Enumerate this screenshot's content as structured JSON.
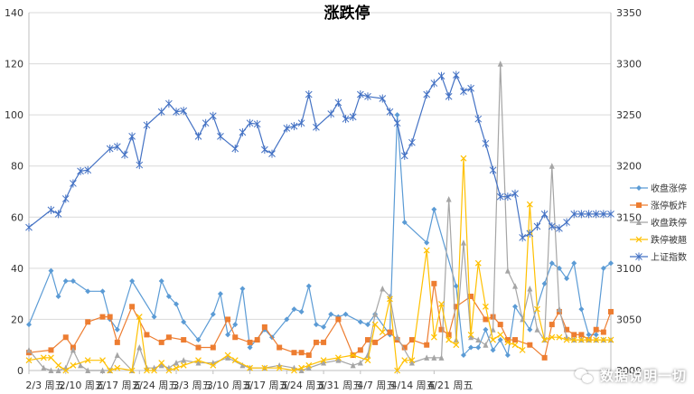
{
  "chart_data": {
    "type": "line",
    "title": "涨跌停",
    "x_tick_labels": [
      "2/3 周五",
      "2/10 周五",
      "2/17 周五",
      "2/24 周五",
      "3/3 周五",
      "3/10 周五",
      "3/17 周五",
      "3/24 周五",
      "3/31 周五",
      "4/7 周五",
      "4/14 周五",
      "4/21 周五"
    ],
    "left_axis": {
      "min": 0,
      "max": 140,
      "ticks": [
        0,
        20,
        40,
        60,
        80,
        100,
        120,
        140
      ]
    },
    "right_axis": {
      "min": 3000,
      "max": 3350,
      "ticks": [
        3000,
        3050,
        3100,
        3150,
        3200,
        3250,
        3300,
        3350
      ]
    },
    "grid": true,
    "legend_position": "right",
    "series": [
      {
        "name": "收盘涨停",
        "color": "#5b9bd5",
        "marker": "diamond",
        "axis": "left",
        "x": [
          0,
          3,
          4,
          5,
          6,
          8,
          10,
          11,
          12,
          14,
          17,
          18,
          19,
          20,
          21,
          23,
          25,
          26,
          27,
          28,
          29,
          30,
          32,
          33,
          35,
          36,
          37,
          38,
          39,
          40,
          41,
          42,
          43,
          45,
          46,
          47,
          49,
          50,
          51,
          54,
          55,
          58,
          59,
          60,
          61,
          62,
          63,
          64,
          65,
          66,
          68,
          70,
          71,
          72,
          73,
          74,
          75,
          76,
          77,
          78,
          79
        ],
        "y": [
          18,
          39,
          29,
          35,
          35,
          31,
          31,
          20,
          16,
          35,
          21,
          35,
          29,
          26,
          19,
          12,
          22,
          30,
          14,
          18,
          32,
          9,
          16,
          13,
          20,
          24,
          23,
          33,
          18,
          17,
          22,
          21,
          22,
          19,
          18,
          22,
          14,
          100,
          58,
          50,
          63,
          33,
          6,
          9,
          9,
          16,
          8,
          12,
          6,
          25,
          16,
          34,
          42,
          40,
          36,
          42,
          24,
          14,
          14,
          40,
          42
        ],
        "total_points": 80
      },
      {
        "name": "涨停板炸",
        "color": "#ed7d31",
        "marker": "square",
        "axis": "left",
        "x": [
          0,
          3,
          5,
          6,
          8,
          10,
          11,
          12,
          14,
          16,
          18,
          19,
          21,
          23,
          25,
          27,
          28,
          30,
          31,
          32,
          34,
          36,
          37,
          38,
          39,
          40,
          42,
          44,
          45,
          46,
          47,
          49,
          50,
          51,
          52,
          54,
          55,
          56,
          57,
          58,
          60,
          62,
          63,
          64,
          65,
          66,
          68,
          70,
          71,
          72,
          73,
          74,
          75,
          76,
          77,
          78,
          79
        ],
        "y": [
          7,
          8,
          13,
          9,
          19,
          21,
          21,
          11,
          25,
          14,
          11,
          13,
          12,
          9,
          9,
          20,
          13,
          11,
          12,
          17,
          9,
          7,
          7,
          6,
          11,
          11,
          20,
          6,
          8,
          12,
          11,
          15,
          12,
          9,
          12,
          10,
          34,
          16,
          14,
          25,
          29,
          20,
          21,
          18,
          12,
          12,
          10,
          5,
          18,
          23,
          16,
          14,
          14,
          12,
          16,
          15,
          23
        ],
        "total_points": 80
      },
      {
        "name": "收盘跌停",
        "color": "#a5a5a5",
        "marker": "triangle",
        "axis": "left",
        "x": [
          0,
          2,
          3,
          4,
          5,
          6,
          7,
          8,
          10,
          11,
          12,
          14,
          15,
          16,
          17,
          18,
          19,
          20,
          21,
          23,
          25,
          27,
          29,
          30,
          32,
          34,
          36,
          37,
          38,
          40,
          42,
          44,
          45,
          46,
          47,
          48,
          49,
          50,
          52,
          54,
          55,
          56,
          57,
          58,
          59,
          60,
          61,
          62,
          63,
          64,
          65,
          66,
          67,
          68,
          69,
          70,
          71,
          72,
          73,
          74,
          75,
          76,
          77,
          78,
          79
        ],
        "y": [
          8,
          1,
          0,
          0,
          1,
          8,
          2,
          0,
          0,
          0,
          6,
          0,
          9,
          1,
          1,
          2,
          1,
          3,
          4,
          3,
          3,
          5,
          2,
          1,
          1,
          2,
          1,
          0,
          1,
          3,
          4,
          2,
          3,
          6,
          22,
          32,
          29,
          13,
          3,
          5,
          5,
          5,
          67,
          12,
          50,
          13,
          12,
          10,
          16,
          120,
          39,
          33,
          20,
          32,
          16,
          12,
          80,
          24,
          13,
          12,
          12,
          12,
          12,
          12,
          12
        ],
        "total_points": 80
      },
      {
        "name": "跌停被翘",
        "color": "#ffc000",
        "marker": "x",
        "axis": "left",
        "x": [
          0,
          2,
          3,
          4,
          5,
          6,
          8,
          10,
          11,
          12,
          14,
          15,
          16,
          17,
          18,
          19,
          20,
          21,
          23,
          25,
          27,
          28,
          30,
          32,
          34,
          36,
          37,
          38,
          40,
          42,
          44,
          46,
          47,
          48,
          49,
          50,
          51,
          52,
          54,
          55,
          56,
          57,
          58,
          59,
          60,
          61,
          62,
          63,
          64,
          65,
          66,
          67,
          68,
          69,
          70,
          71,
          72,
          73,
          74,
          75,
          76,
          77,
          78,
          79
        ],
        "y": [
          4,
          5,
          5,
          2,
          0,
          2,
          4,
          4,
          0,
          1,
          0,
          21,
          0,
          0,
          3,
          0,
          1,
          2,
          4,
          2,
          6,
          4,
          1,
          1,
          1,
          0,
          1,
          2,
          4,
          5,
          6,
          4,
          18,
          15,
          28,
          0,
          4,
          4,
          47,
          13,
          26,
          12,
          10,
          83,
          14,
          42,
          25,
          12,
          14,
          11,
          10,
          8,
          65,
          24,
          12,
          13,
          13,
          12,
          12,
          12,
          12,
          12,
          12,
          12
        ],
        "total_points": 80
      },
      {
        "name": "上证指数",
        "color": "#4472c4",
        "marker": "asterisk",
        "axis": "right",
        "x": [
          0,
          3,
          4,
          5,
          6,
          7,
          8,
          11,
          12,
          13,
          14,
          15,
          16,
          18,
          19,
          20,
          21,
          23,
          24,
          25,
          26,
          28,
          29,
          30,
          31,
          32,
          33,
          35,
          36,
          37,
          38,
          39,
          41,
          42,
          43,
          44,
          45,
          46,
          48,
          49,
          50,
          51,
          52,
          54,
          55,
          56,
          57,
          58,
          59,
          60,
          61,
          62,
          63,
          64,
          65,
          66,
          67,
          68,
          69,
          70,
          71,
          72,
          73,
          74,
          75,
          76,
          77,
          78,
          79
        ],
        "y": [
          3140,
          3157,
          3153,
          3168,
          3183,
          3195,
          3196,
          3217,
          3219,
          3211,
          3229,
          3201,
          3240,
          3253,
          3261,
          3253,
          3254,
          3229,
          3242,
          3249,
          3229,
          3217,
          3233,
          3242,
          3241,
          3216,
          3212,
          3237,
          3239,
          3242,
          3270,
          3238,
          3251,
          3262,
          3246,
          3248,
          3270,
          3268,
          3266,
          3253,
          3242,
          3210,
          3223,
          3270,
          3281,
          3288,
          3268,
          3289,
          3273,
          3276,
          3246,
          3222,
          3196,
          3170,
          3170,
          3173,
          3130,
          3134,
          3141,
          3153,
          3141,
          3139,
          3145,
          3153,
          3153,
          3153,
          3153,
          3153,
          3153
        ],
        "total_points": 80
      }
    ]
  }
}
